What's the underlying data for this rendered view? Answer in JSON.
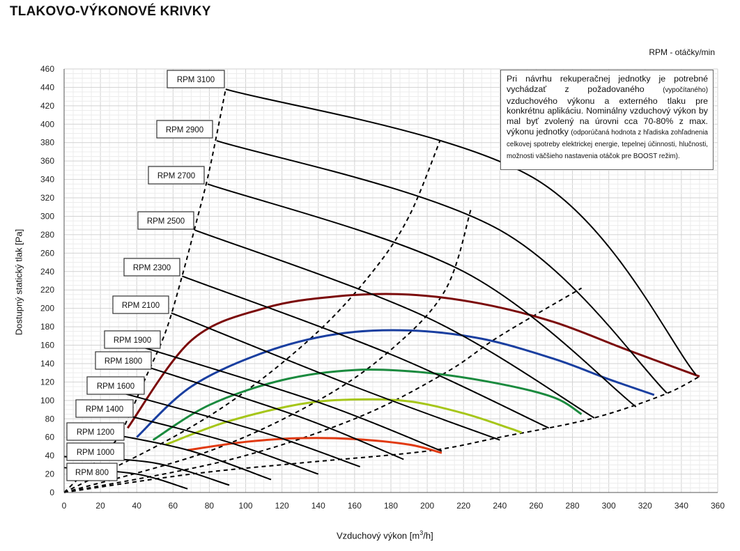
{
  "page": {
    "title": "TLAKOVO-VÝKONOVÉ KRIVKY",
    "rpm_unit": "RPM - otáčky/min"
  },
  "note": {
    "p1": "Pri návrhu rekuperačnej jednotky je potrebné vychádzať z požadovaného",
    "p2": "(vypočítaného)",
    "p3": "vzduchového výkonu a externého tlaku pre konkrétnu aplikáciu. Nominálny vzduchový výkon by mal byť zvolený na úrovni cca 70-80% z max. výkonu jednotky",
    "p4": "(odporúčaná hodnota z hľadiska zohľadnenia celkovej spotreby elektrickej energie, tepelnej účinnosti, hlučnosti, možnosti väčšieho nastavenia otáčok pre BOOST režim)."
  },
  "chart_data": {
    "type": "line",
    "title": "TLAKOVO-VÝKONOVÉ KRIVKY",
    "xlabel_main": "Vzduchový výkon [m",
    "xlabel_sup": "3",
    "xlabel_end": "/h]",
    "ylabel": "Dostupný statický tlak [Pa]",
    "xlim": [
      0,
      360
    ],
    "ylim": [
      0,
      460
    ],
    "x_ticks": [
      0,
      20,
      40,
      60,
      80,
      100,
      120,
      140,
      160,
      180,
      200,
      220,
      240,
      260,
      280,
      300,
      320,
      340,
      360
    ],
    "y_ticks": [
      0,
      20,
      40,
      60,
      80,
      100,
      120,
      140,
      160,
      180,
      200,
      220,
      240,
      260,
      280,
      300,
      320,
      340,
      360,
      380,
      400,
      420,
      440,
      460
    ],
    "grid": true,
    "rpm_curves": [
      {
        "name": "RPM 800",
        "rpm": 800,
        "points": [
          [
            0,
            27
          ],
          [
            40,
            20
          ],
          [
            68,
            4
          ]
        ]
      },
      {
        "name": "RPM 1000",
        "rpm": 1000,
        "points": [
          [
            0,
            39
          ],
          [
            50,
            32
          ],
          [
            91,
            8
          ]
        ]
      },
      {
        "name": "RPM 1200",
        "rpm": 1200,
        "points": [
          [
            30,
            62
          ],
          [
            70,
            45
          ],
          [
            114,
            14
          ]
        ]
      },
      {
        "name": "RPM 1400",
        "rpm": 1400,
        "points": [
          [
            32,
            85
          ],
          [
            90,
            55
          ],
          [
            140,
            20
          ]
        ]
      },
      {
        "name": "RPM 1600",
        "rpm": 1600,
        "points": [
          [
            34,
            107
          ],
          [
            110,
            65
          ],
          [
            163,
            28
          ]
        ]
      },
      {
        "name": "RPM 1800",
        "rpm": 1800,
        "points": [
          [
            40,
            140
          ],
          [
            130,
            82
          ],
          [
            187,
            36
          ]
        ]
      },
      {
        "name": "RPM 1900",
        "rpm": 1900,
        "points": [
          [
            43,
            158
          ],
          [
            140,
            98
          ],
          [
            208,
            45
          ]
        ]
      },
      {
        "name": "RPM 2100",
        "rpm": 2100,
        "points": [
          [
            59,
            195
          ],
          [
            160,
            115
          ],
          [
            240,
            57
          ]
        ]
      },
      {
        "name": "RPM 2300",
        "rpm": 2300,
        "points": [
          [
            65,
            235
          ],
          [
            180,
            150
          ],
          [
            267,
            70
          ]
        ]
      },
      {
        "name": "RPM 2500",
        "rpm": 2500,
        "points": [
          [
            72,
            285
          ],
          [
            200,
            190
          ],
          [
            292,
            81
          ]
        ]
      },
      {
        "name": "RPM 2700",
        "rpm": 2700,
        "points": [
          [
            79,
            335
          ],
          [
            220,
            240
          ],
          [
            315,
            93
          ]
        ]
      },
      {
        "name": "RPM 2900",
        "rpm": 2900,
        "points": [
          [
            84,
            382
          ],
          [
            240,
            285
          ],
          [
            332,
            108
          ]
        ]
      },
      {
        "name": "RPM 3100",
        "rpm": 3100,
        "points": [
          [
            89,
            438
          ],
          [
            260,
            340
          ],
          [
            348,
            128
          ]
        ]
      }
    ],
    "performance_curves": [
      {
        "name": "red-dark",
        "color": "#7b0a0a",
        "points": [
          [
            35,
            70
          ],
          [
            70,
            165
          ],
          [
            110,
            200
          ],
          [
            150,
            213
          ],
          [
            190,
            215
          ],
          [
            230,
            205
          ],
          [
            270,
            185
          ],
          [
            310,
            155
          ],
          [
            350,
            126
          ]
        ]
      },
      {
        "name": "blue",
        "color": "#1a3fa0",
        "points": [
          [
            40,
            60
          ],
          [
            70,
            115
          ],
          [
            110,
            152
          ],
          [
            150,
            172
          ],
          [
            190,
            176
          ],
          [
            230,
            167
          ],
          [
            270,
            145
          ],
          [
            300,
            123
          ],
          [
            325,
            106
          ]
        ]
      },
      {
        "name": "green",
        "color": "#1a8a3e",
        "points": [
          [
            49,
            57
          ],
          [
            80,
            95
          ],
          [
            120,
            122
          ],
          [
            160,
            133
          ],
          [
            200,
            130
          ],
          [
            240,
            118
          ],
          [
            270,
            103
          ],
          [
            285,
            85
          ]
        ]
      },
      {
        "name": "yellow-green",
        "color": "#a6c61a",
        "points": [
          [
            56,
            52
          ],
          [
            90,
            77
          ],
          [
            130,
            96
          ],
          [
            160,
            101
          ],
          [
            190,
            99
          ],
          [
            220,
            86
          ],
          [
            245,
            70
          ],
          [
            252,
            65
          ]
        ]
      },
      {
        "name": "red",
        "color": "#e13a12",
        "points": [
          [
            68,
            46
          ],
          [
            100,
            55
          ],
          [
            130,
            59
          ],
          [
            160,
            58
          ],
          [
            190,
            52
          ],
          [
            208,
            43
          ]
        ]
      }
    ],
    "system_curves": [
      {
        "name": "left-boundary",
        "points": [
          [
            0,
            0
          ],
          [
            28,
            55
          ],
          [
            35,
            80
          ],
          [
            45,
            125
          ],
          [
            56,
            175
          ],
          [
            65,
            235
          ],
          [
            73,
            295
          ],
          [
            80,
            350
          ],
          [
            89,
            438
          ]
        ]
      },
      {
        "name": "line-2",
        "points": [
          [
            0,
            0
          ],
          [
            60,
            60
          ],
          [
            100,
            110
          ],
          [
            140,
            175
          ],
          [
            170,
            240
          ],
          [
            190,
            300
          ],
          [
            207,
            382
          ]
        ]
      },
      {
        "name": "line-3",
        "points": [
          [
            0,
            0
          ],
          [
            80,
            45
          ],
          [
            140,
            100
          ],
          [
            180,
            155
          ],
          [
            210,
            220
          ],
          [
            224,
            307
          ]
        ]
      },
      {
        "name": "line-4",
        "points": [
          [
            0,
            0
          ],
          [
            90,
            35
          ],
          [
            160,
            80
          ],
          [
            210,
            130
          ],
          [
            240,
            170
          ],
          [
            285,
            222
          ]
        ]
      },
      {
        "name": "right-boundary",
        "points": [
          [
            0,
            0
          ],
          [
            70,
            20
          ],
          [
            130,
            32
          ],
          [
            200,
            45
          ],
          [
            240,
            60
          ],
          [
            290,
            80
          ],
          [
            330,
            106
          ],
          [
            350,
            126
          ]
        ]
      }
    ]
  }
}
